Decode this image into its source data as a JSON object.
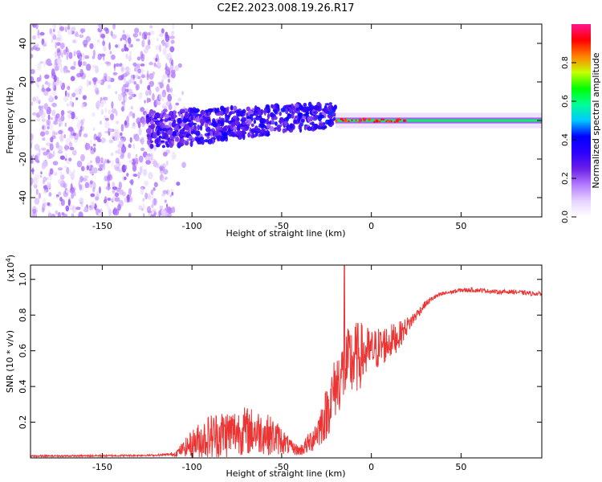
{
  "chart_data": [
    {
      "type": "heatmap",
      "title": "C2E2.2023.008.19.26.R17",
      "xlabel": "Height of straight line (km)",
      "ylabel": "Frequency (Hz)",
      "xlim": [
        -190,
        95
      ],
      "ylim": [
        -50,
        50
      ],
      "x_ticks": [
        -150,
        -100,
        -50,
        0,
        50
      ],
      "y_ticks": [
        -40,
        -20,
        0,
        20,
        40
      ],
      "colorbar": {
        "label": "Normalized spectral amplitude",
        "range": [
          0.0,
          1.0
        ],
        "ticks": [
          "0.0",
          "0.2",
          "0.4",
          "0.6",
          "0.8"
        ],
        "tick_values": [
          0.0,
          0.2,
          0.4,
          0.6,
          0.8
        ],
        "colormap": [
          "#ffffff",
          "#e6d3ff",
          "#b47bff",
          "#6a1fe6",
          "#2b00ff",
          "#0000ff",
          "#00c8ff",
          "#00ff96",
          "#00ff00",
          "#c8ff00",
          "#ff8000",
          "#ff0000",
          "#ff1493"
        ]
      },
      "regions": [
        {
          "name": "noise",
          "x_range": [
            -190,
            -112
          ],
          "freq_range": [
            -50,
            50
          ],
          "amplitude": "0.0-0.15"
        },
        {
          "name": "transition",
          "x_range": [
            -125,
            -20
          ],
          "freq_range": [
            -15,
            12
          ],
          "amplitude": "0.15-0.45"
        },
        {
          "name": "carrier",
          "x_range": [
            -20,
            95
          ],
          "freq_center": 0,
          "amplitude": "0.6-1.0"
        }
      ]
    },
    {
      "type": "line",
      "xlabel": "Height of straight line (km)",
      "ylabel": "SNR (10 * v/v)",
      "y_scale_label": "(x10",
      "y_scale_exp": "4",
      "y_scale_close": ")",
      "xlim": [
        -190,
        95
      ],
      "ylim": [
        0,
        1.08
      ],
      "x_ticks": [
        -150,
        -100,
        -50,
        0,
        50
      ],
      "y_ticks": [
        "0.2",
        "0.4",
        "0.6",
        "0.8",
        "1.0"
      ],
      "y_tick_values": [
        0.2,
        0.4,
        0.6,
        0.8,
        1.0
      ],
      "color": "#ee3333",
      "series": [
        {
          "name": "SNR",
          "x": [
            -190,
            -150,
            -120,
            -110,
            -105,
            -100,
            -95,
            -90,
            -85,
            -80,
            -75,
            -70,
            -65,
            -60,
            -55,
            -50,
            -45,
            -40,
            -35,
            -30,
            -25,
            -20,
            -15,
            -10,
            -5,
            0,
            5,
            10,
            15,
            20,
            25,
            30,
            35,
            40,
            50,
            60,
            70,
            80,
            90,
            95
          ],
          "baseline": [
            0.01,
            0.012,
            0.015,
            0.02,
            0.05,
            0.08,
            0.1,
            0.12,
            0.13,
            0.14,
            0.15,
            0.15,
            0.15,
            0.14,
            0.12,
            0.1,
            0.06,
            0.04,
            0.08,
            0.15,
            0.25,
            0.4,
            0.5,
            0.55,
            0.58,
            0.6,
            0.62,
            0.65,
            0.68,
            0.74,
            0.8,
            0.86,
            0.9,
            0.92,
            0.94,
            0.94,
            0.93,
            0.93,
            0.92,
            0.92
          ],
          "noise_amplitude": [
            0.005,
            0.005,
            0.005,
            0.01,
            0.04,
            0.08,
            0.11,
            0.13,
            0.14,
            0.14,
            0.13,
            0.14,
            0.13,
            0.12,
            0.11,
            0.08,
            0.04,
            0.03,
            0.06,
            0.1,
            0.15,
            0.18,
            0.2,
            0.22,
            0.18,
            0.12,
            0.12,
            0.1,
            0.08,
            0.05,
            0.03,
            0.02,
            0.015,
            0.012,
            0.012,
            0.012,
            0.012,
            0.012,
            0.012,
            0.012
          ],
          "peak": {
            "x": -15,
            "y": 1.08
          }
        }
      ]
    }
  ]
}
